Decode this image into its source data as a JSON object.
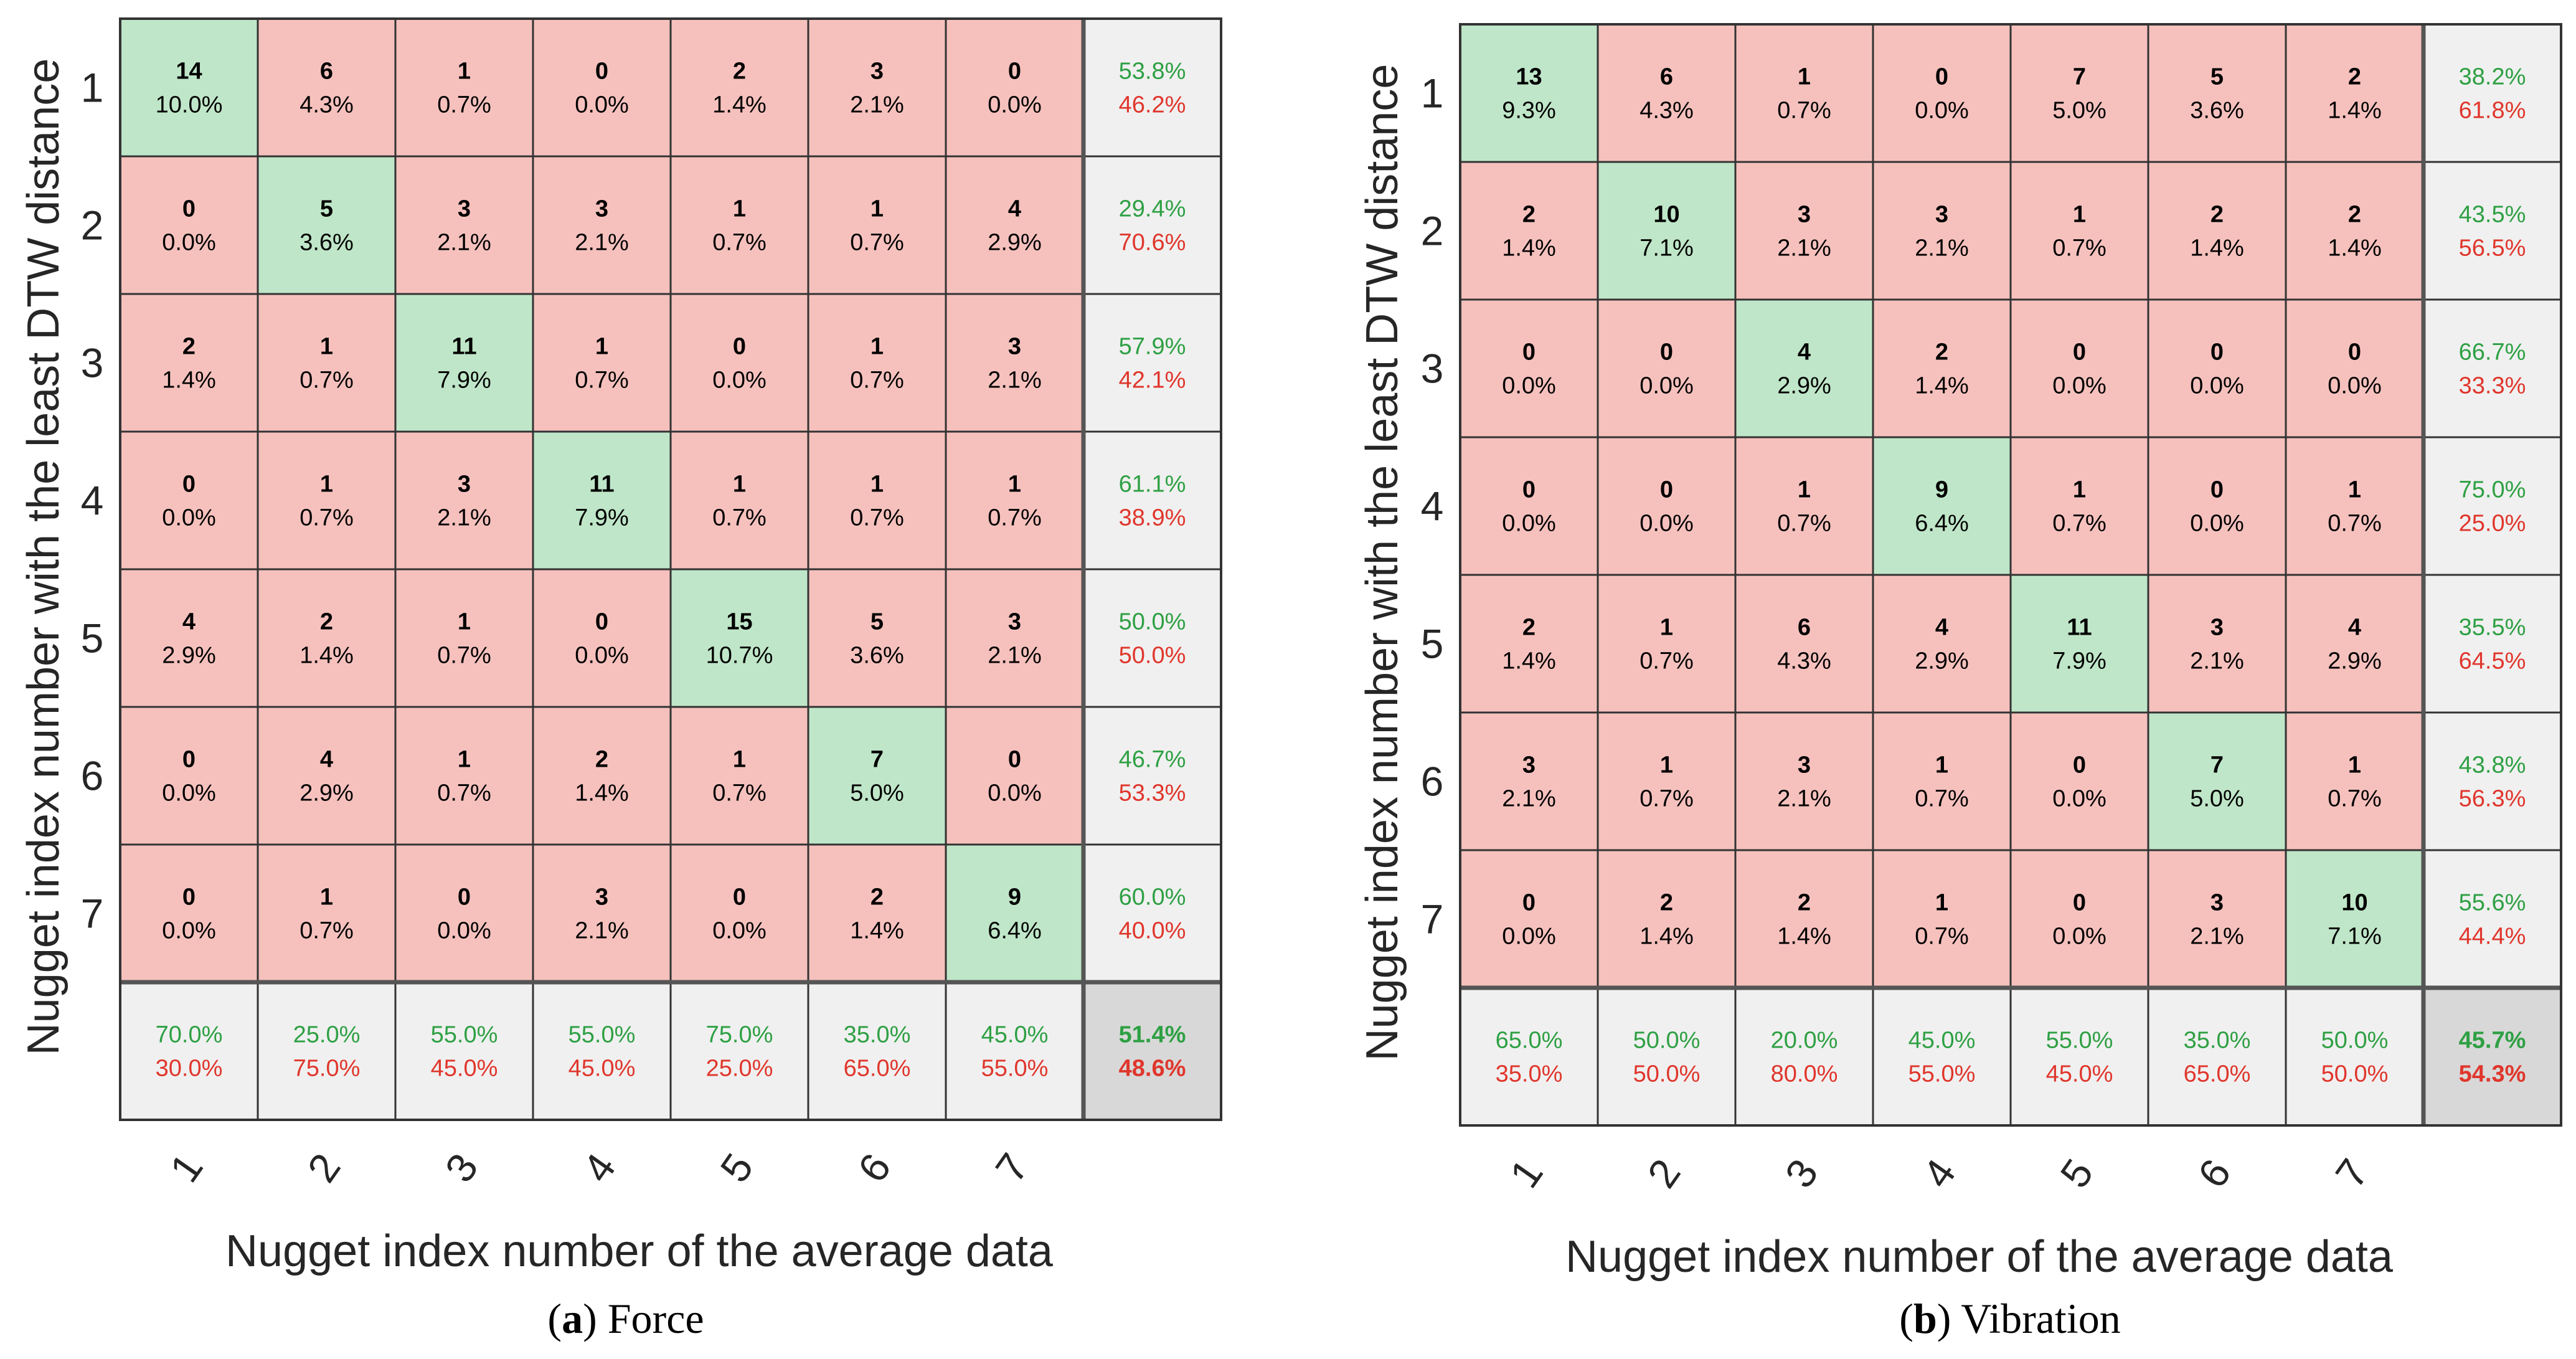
{
  "colors": {
    "correct_cell": "#bfe6c8",
    "wrong_cell": "#f6c1bd",
    "summary_cell": "#f0f0f0",
    "overall_cell": "#d8d8d8",
    "grid_line": "#333333",
    "good_text": "#2ea043",
    "bad_text": "#e0362c",
    "count_text": "#000000"
  },
  "chart_data": [
    {
      "type": "heatmap",
      "subtype": "confusion-matrix",
      "panel_label": "(a)",
      "panel_letter": "a",
      "caption_text": "Force",
      "ylabel": "Nugget index number with the least DTW distance",
      "xlabel": "Nugget index number of the average data",
      "row_labels": [
        "1",
        "2",
        "3",
        "4",
        "5",
        "6",
        "7"
      ],
      "col_labels": [
        "1",
        "2",
        "3",
        "4",
        "5",
        "6",
        "7"
      ],
      "counts": [
        [
          14,
          6,
          1,
          0,
          2,
          3,
          0
        ],
        [
          0,
          5,
          3,
          3,
          1,
          1,
          4
        ],
        [
          2,
          1,
          11,
          1,
          0,
          1,
          3
        ],
        [
          0,
          1,
          3,
          11,
          1,
          1,
          1
        ],
        [
          4,
          2,
          1,
          0,
          15,
          5,
          3
        ],
        [
          0,
          4,
          1,
          2,
          1,
          7,
          0
        ],
        [
          0,
          1,
          0,
          3,
          0,
          2,
          9
        ]
      ],
      "percents": [
        [
          "10.0%",
          "4.3%",
          "0.7%",
          "0.0%",
          "1.4%",
          "2.1%",
          "0.0%"
        ],
        [
          "0.0%",
          "3.6%",
          "2.1%",
          "2.1%",
          "0.7%",
          "0.7%",
          "2.9%"
        ],
        [
          "1.4%",
          "0.7%",
          "7.9%",
          "0.7%",
          "0.0%",
          "0.7%",
          "2.1%"
        ],
        [
          "0.0%",
          "0.7%",
          "2.1%",
          "7.9%",
          "0.7%",
          "0.7%",
          "0.7%"
        ],
        [
          "2.9%",
          "1.4%",
          "0.7%",
          "0.0%",
          "10.7%",
          "3.6%",
          "2.1%"
        ],
        [
          "0.0%",
          "2.9%",
          "0.7%",
          "1.4%",
          "0.7%",
          "5.0%",
          "0.0%"
        ],
        [
          "0.0%",
          "0.7%",
          "0.0%",
          "2.1%",
          "0.0%",
          "1.4%",
          "6.4%"
        ]
      ],
      "row_summary": [
        [
          "53.8%",
          "46.2%"
        ],
        [
          "29.4%",
          "70.6%"
        ],
        [
          "57.9%",
          "42.1%"
        ],
        [
          "61.1%",
          "38.9%"
        ],
        [
          "50.0%",
          "50.0%"
        ],
        [
          "46.7%",
          "53.3%"
        ],
        [
          "60.0%",
          "40.0%"
        ]
      ],
      "col_summary": [
        [
          "70.0%",
          "30.0%"
        ],
        [
          "25.0%",
          "75.0%"
        ],
        [
          "55.0%",
          "45.0%"
        ],
        [
          "55.0%",
          "45.0%"
        ],
        [
          "75.0%",
          "25.0%"
        ],
        [
          "35.0%",
          "65.0%"
        ],
        [
          "45.0%",
          "55.0%"
        ]
      ],
      "overall": [
        "51.4%",
        "48.6%"
      ]
    },
    {
      "type": "heatmap",
      "subtype": "confusion-matrix",
      "panel_label": "(b)",
      "panel_letter": "b",
      "caption_text": "Vibration",
      "ylabel": "Nugget index number with the least DTW distance",
      "xlabel": "Nugget index number of the average data",
      "row_labels": [
        "1",
        "2",
        "3",
        "4",
        "5",
        "6",
        "7"
      ],
      "col_labels": [
        "1",
        "2",
        "3",
        "4",
        "5",
        "6",
        "7"
      ],
      "counts": [
        [
          13,
          6,
          1,
          0,
          7,
          5,
          2
        ],
        [
          2,
          10,
          3,
          3,
          1,
          2,
          2
        ],
        [
          0,
          0,
          4,
          2,
          0,
          0,
          0
        ],
        [
          0,
          0,
          1,
          9,
          1,
          0,
          1
        ],
        [
          2,
          1,
          6,
          4,
          11,
          3,
          4
        ],
        [
          3,
          1,
          3,
          1,
          0,
          7,
          1
        ],
        [
          0,
          2,
          2,
          1,
          0,
          3,
          10
        ]
      ],
      "percents": [
        [
          "9.3%",
          "4.3%",
          "0.7%",
          "0.0%",
          "5.0%",
          "3.6%",
          "1.4%"
        ],
        [
          "1.4%",
          "7.1%",
          "2.1%",
          "2.1%",
          "0.7%",
          "1.4%",
          "1.4%"
        ],
        [
          "0.0%",
          "0.0%",
          "2.9%",
          "1.4%",
          "0.0%",
          "0.0%",
          "0.0%"
        ],
        [
          "0.0%",
          "0.0%",
          "0.7%",
          "6.4%",
          "0.7%",
          "0.0%",
          "0.7%"
        ],
        [
          "1.4%",
          "0.7%",
          "4.3%",
          "2.9%",
          "7.9%",
          "2.1%",
          "2.9%"
        ],
        [
          "2.1%",
          "0.7%",
          "2.1%",
          "0.7%",
          "0.0%",
          "5.0%",
          "0.7%"
        ],
        [
          "0.0%",
          "1.4%",
          "1.4%",
          "0.7%",
          "0.0%",
          "2.1%",
          "7.1%"
        ]
      ],
      "row_summary": [
        [
          "38.2%",
          "61.8%"
        ],
        [
          "43.5%",
          "56.5%"
        ],
        [
          "66.7%",
          "33.3%"
        ],
        [
          "75.0%",
          "25.0%"
        ],
        [
          "35.5%",
          "64.5%"
        ],
        [
          "43.8%",
          "56.3%"
        ],
        [
          "55.6%",
          "44.4%"
        ]
      ],
      "col_summary": [
        [
          "65.0%",
          "35.0%"
        ],
        [
          "50.0%",
          "50.0%"
        ],
        [
          "20.0%",
          "80.0%"
        ],
        [
          "45.0%",
          "55.0%"
        ],
        [
          "55.0%",
          "45.0%"
        ],
        [
          "35.0%",
          "65.0%"
        ],
        [
          "50.0%",
          "50.0%"
        ]
      ],
      "overall": [
        "45.7%",
        "54.3%"
      ]
    }
  ]
}
